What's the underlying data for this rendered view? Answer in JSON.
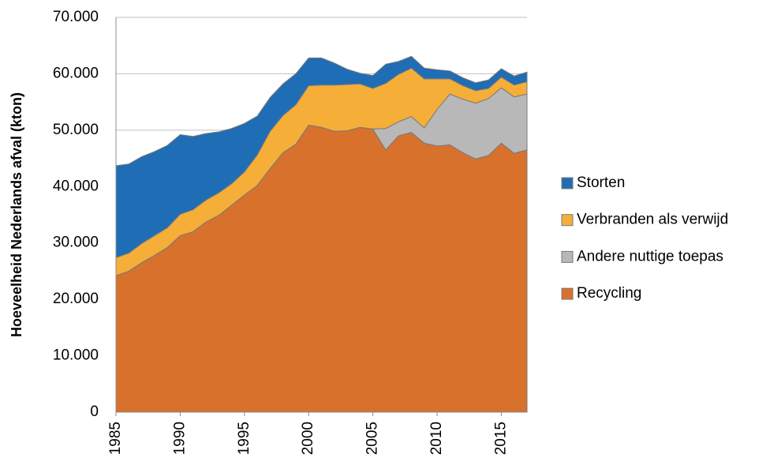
{
  "chart_data": {
    "type": "stacked_area",
    "y_label": "Hoeveelheid Nederlands afval (kton)",
    "x": [
      1985,
      1986,
      1987,
      1988,
      1989,
      1990,
      1991,
      1992,
      1993,
      1994,
      1995,
      1996,
      1997,
      1998,
      1999,
      2000,
      2001,
      2002,
      2003,
      2004,
      2005,
      2006,
      2007,
      2008,
      2009,
      2010,
      2011,
      2012,
      2013,
      2014,
      2015,
      2016,
      2017
    ],
    "xlim": [
      1985,
      2017
    ],
    "xticks": [
      1985,
      1990,
      1995,
      2000,
      2005,
      2010,
      2015
    ],
    "ylim": [
      0,
      70000
    ],
    "yticks": [
      0,
      {
        "value": 10000,
        "label": "10.000"
      },
      {
        "value": 20000,
        "label": "20.000"
      },
      {
        "value": 30000,
        "label": "30.000"
      },
      {
        "value": 40000,
        "label": "40.000"
      },
      {
        "value": 50000,
        "label": "50.000"
      },
      {
        "value": 60000,
        "label": "60.000"
      },
      {
        "value": 70000,
        "label": "70.000"
      }
    ],
    "grid": true,
    "legend": "right",
    "series": [
      {
        "name": "Recycling",
        "color": "#d7712c",
        "values": [
          24200,
          25000,
          26500,
          27800,
          29200,
          31300,
          32000,
          33700,
          34900,
          36700,
          38500,
          40200,
          43200,
          46000,
          47500,
          50900,
          50500,
          49800,
          49900,
          50500,
          50200,
          46500,
          49000,
          49600,
          47700,
          47200,
          47400,
          46000,
          44900,
          45500,
          47700,
          45900,
          46500
        ]
      },
      {
        "name": "Andere nuttige toepas",
        "color": "#b8b8b8",
        "values": [
          0,
          0,
          0,
          0,
          0,
          0,
          0,
          0,
          0,
          0,
          0,
          0,
          0,
          0,
          0,
          0,
          0,
          0,
          0,
          0,
          0,
          3800,
          2500,
          2800,
          2700,
          6500,
          9000,
          9500,
          9900,
          10100,
          9800,
          10000,
          9900
        ]
      },
      {
        "name": "Verbranden als verwijd",
        "color": "#f5ae37",
        "values": [
          3200,
          3200,
          3400,
          3500,
          3500,
          3800,
          3900,
          3900,
          4000,
          3800,
          4100,
          5400,
          6600,
          6600,
          7000,
          7000,
          7500,
          8200,
          8200,
          7700,
          7200,
          8000,
          8400,
          8600,
          8700,
          5400,
          2700,
          2400,
          2200,
          1800,
          1900,
          2100,
          2200
        ]
      },
      {
        "name": "Storten",
        "color": "#1f6db5",
        "values": [
          16300,
          15800,
          15400,
          14900,
          14600,
          14100,
          13000,
          11800,
          10800,
          9800,
          8600,
          6900,
          6000,
          5600,
          5500,
          4900,
          4800,
          3900,
          2700,
          1900,
          2300,
          3400,
          2300,
          2100,
          1900,
          1600,
          1400,
          1400,
          1400,
          1500,
          1500,
          1600,
          1700
        ]
      }
    ]
  }
}
